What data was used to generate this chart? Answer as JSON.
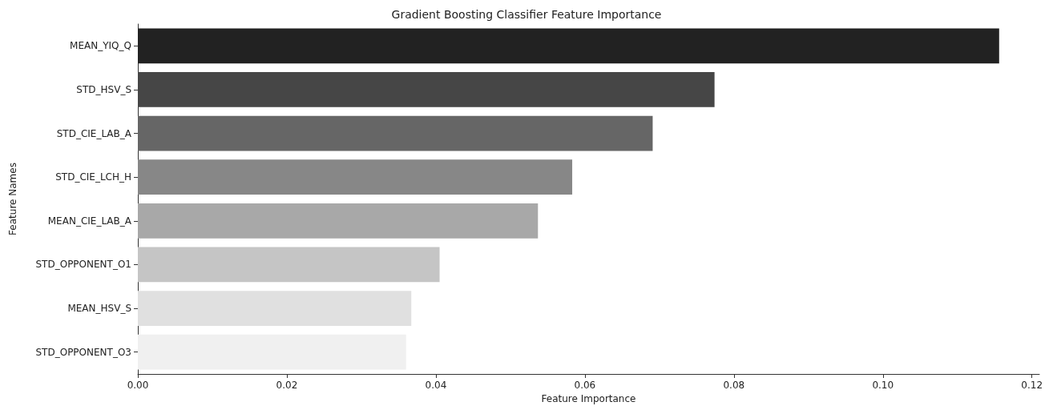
{
  "chart_data": {
    "type": "bar",
    "orientation": "horizontal",
    "title": "Gradient Boosting Classifier Feature Importance",
    "xlabel": "Feature Importance",
    "ylabel": "Feature Names",
    "categories": [
      "MEAN_YIQ_Q",
      "STD_HSV_S",
      "STD_CIE_LAB_A",
      "STD_CIE_LCH_H",
      "MEAN_CIE_LAB_A",
      "STD_OPPONENT_O1",
      "MEAN_HSV_S",
      "STD_OPPONENT_O3"
    ],
    "values": [
      0.1156,
      0.0774,
      0.0691,
      0.0583,
      0.0537,
      0.0405,
      0.0367,
      0.036
    ],
    "colors": [
      "#222222",
      "#464646",
      "#666666",
      "#878787",
      "#a8a8a8",
      "#c5c5c5",
      "#e0e0e0",
      "#f0f0f0"
    ],
    "xlim": [
      0,
      0.121
    ],
    "xticks": [
      {
        "value": 0,
        "label": "0.00"
      },
      {
        "value": 0.02,
        "label": "0.02"
      },
      {
        "value": 0.04,
        "label": "0.04"
      },
      {
        "value": 0.06,
        "label": "0.06"
      },
      {
        "value": 0.08,
        "label": "0.08"
      },
      {
        "value": 0.1,
        "label": "0.10"
      },
      {
        "value": 0.12,
        "label": "0.12"
      }
    ],
    "grid": false
  }
}
